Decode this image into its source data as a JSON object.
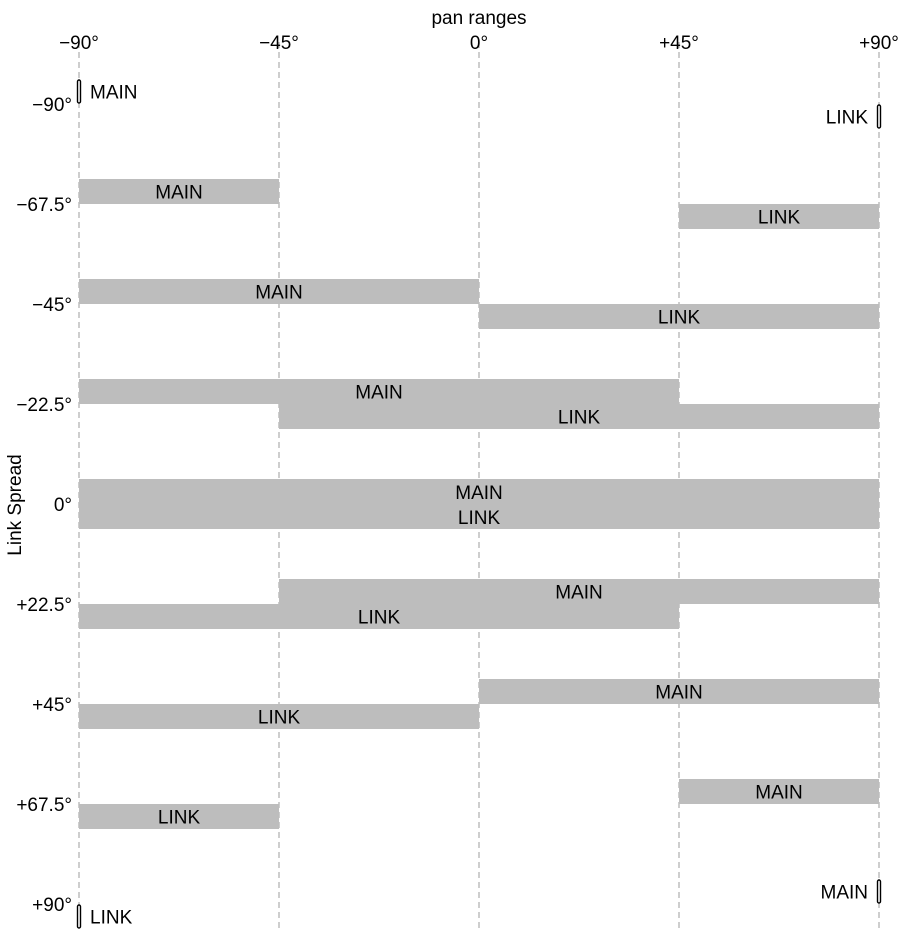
{
  "chart_data": {
    "type": "bar",
    "title": "",
    "xlabel": "pan ranges",
    "ylabel": "Link Spread",
    "xlim": [
      -90,
      90
    ],
    "x_ticks": [
      {
        "value": -90,
        "label": "−90°"
      },
      {
        "value": -45,
        "label": "−45°"
      },
      {
        "value": 0,
        "label": "0°"
      },
      {
        "value": 45,
        "label": "+45°"
      },
      {
        "value": 90,
        "label": "+90°"
      }
    ],
    "grid": "vertical dashed at x ticks",
    "bar_color": "#bdbdbd",
    "rows": [
      {
        "spread": -90,
        "label": "−90°",
        "main": [
          -90,
          -90
        ],
        "link": [
          90,
          90
        ],
        "main_label": "MAIN",
        "link_label": "LINK"
      },
      {
        "spread": -67.5,
        "label": "−67.5°",
        "main": [
          -90,
          -45
        ],
        "link": [
          45,
          90
        ],
        "main_label": "MAIN",
        "link_label": "LINK"
      },
      {
        "spread": -45,
        "label": "−45°",
        "main": [
          -90,
          0
        ],
        "link": [
          0,
          90
        ],
        "main_label": "MAIN",
        "link_label": "LINK"
      },
      {
        "spread": -22.5,
        "label": "−22.5°",
        "main": [
          -90,
          45
        ],
        "link": [
          -45,
          90
        ],
        "main_label": "MAIN",
        "link_label": "LINK"
      },
      {
        "spread": 0,
        "label": "0°",
        "main": [
          -90,
          90
        ],
        "link": [
          -90,
          90
        ],
        "main_label": "MAIN",
        "link_label": "LINK"
      },
      {
        "spread": 22.5,
        "label": "+22.5°",
        "main": [
          -45,
          90
        ],
        "link": [
          -90,
          45
        ],
        "main_label": "MAIN",
        "link_label": "LINK"
      },
      {
        "spread": 45,
        "label": "+45°",
        "main": [
          0,
          90
        ],
        "link": [
          -90,
          0
        ],
        "main_label": "MAIN",
        "link_label": "LINK"
      },
      {
        "spread": 67.5,
        "label": "+67.5°",
        "main": [
          45,
          90
        ],
        "link": [
          -90,
          -45
        ],
        "main_label": "MAIN",
        "link_label": "LINK"
      },
      {
        "spread": 90,
        "label": "+90°",
        "main": [
          90,
          90
        ],
        "link": [
          -90,
          -90
        ],
        "main_label": "MAIN",
        "link_label": "LINK"
      }
    ]
  }
}
